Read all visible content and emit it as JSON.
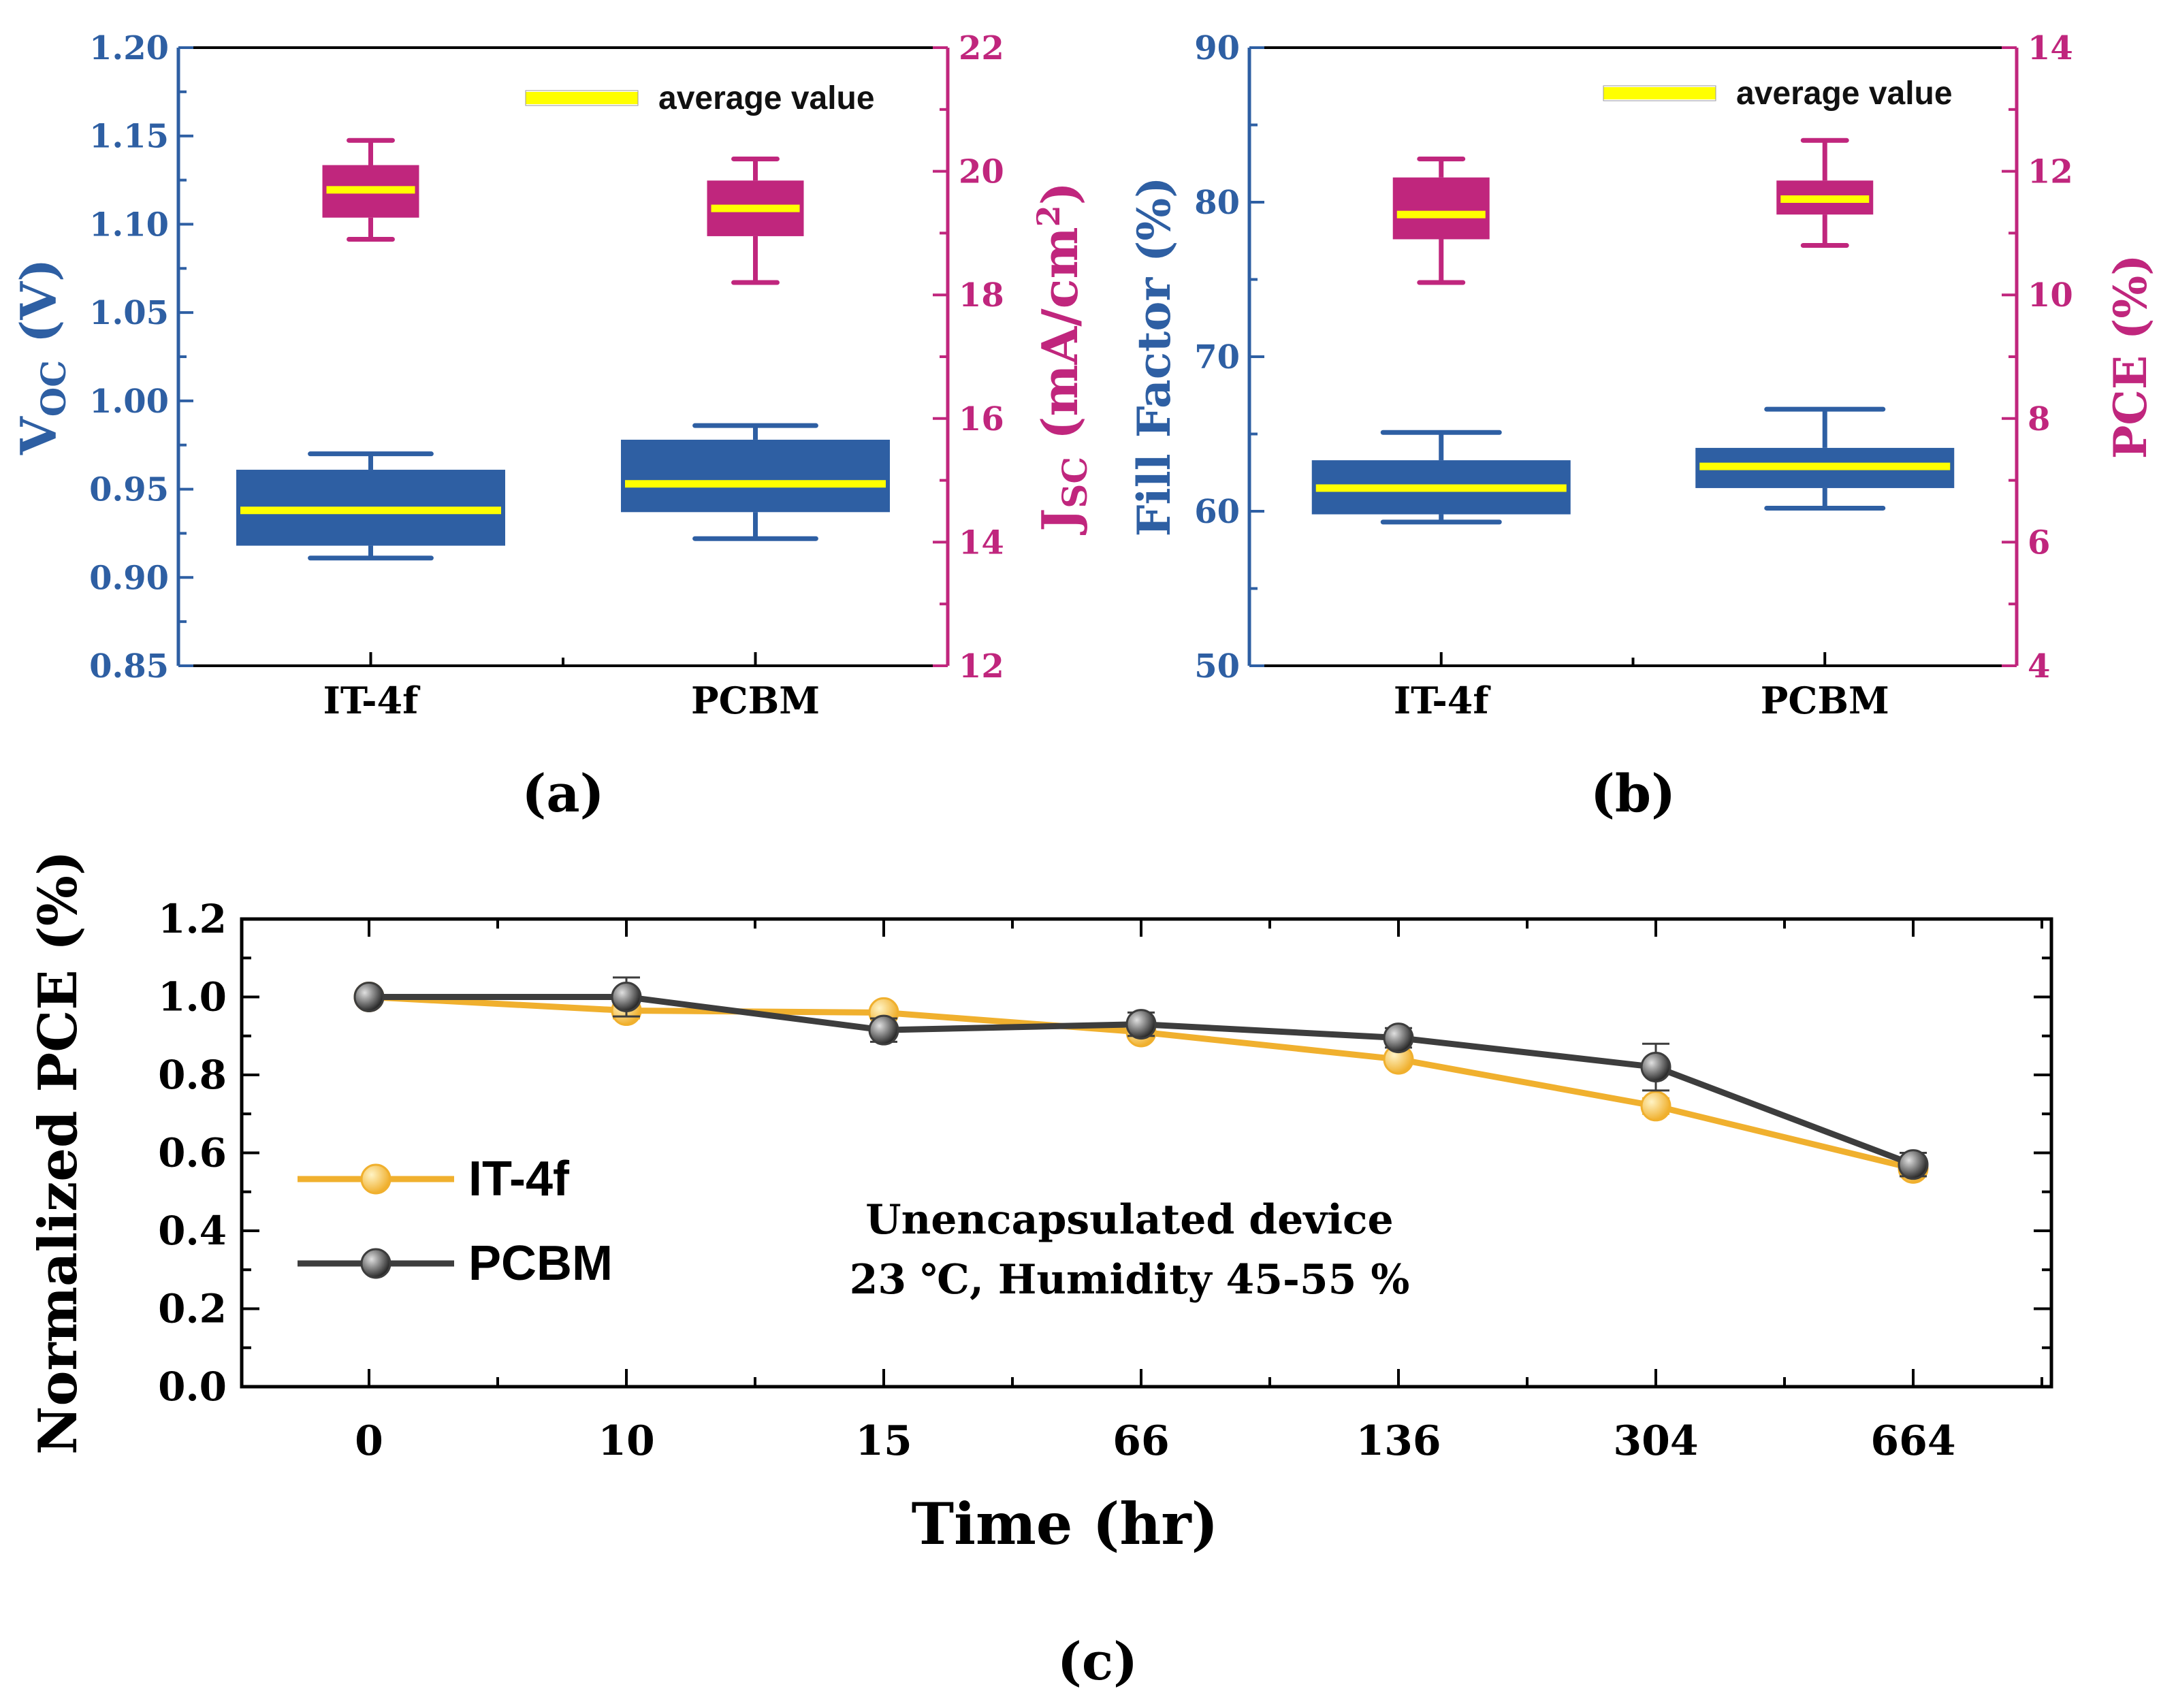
{
  "colors": {
    "blue": "#2e5fa3",
    "magenta": "#c0267d",
    "yellow": "#ffff00",
    "gold": "#f0b02e",
    "dark": "#3d3d3d",
    "axis": "#000000"
  },
  "chart_data": [
    {
      "id": "a",
      "type": "box",
      "panel_label": "(a)",
      "categories": [
        "IT-4f",
        "PCBM"
      ],
      "legend": "average value",
      "left_axis": {
        "label_main": "V",
        "label_sub": "OC",
        "label_unit": " (V)",
        "range": [
          0.85,
          1.2
        ],
        "ticks": [
          0.85,
          0.9,
          0.95,
          1.0,
          1.05,
          1.1,
          1.15,
          1.2
        ],
        "tick_labels": [
          "0.85",
          "0.90",
          "0.95",
          "1.00",
          "1.05",
          "1.10",
          "1.15",
          "1.20"
        ]
      },
      "right_axis": {
        "label_main": "J",
        "label_sub": "SC",
        "label_unit": " (mA/cm",
        "label_sup": "2",
        "label_close": ")",
        "range": [
          12,
          22
        ],
        "ticks": [
          12,
          14,
          16,
          18,
          20,
          22
        ],
        "tick_labels": [
          "12",
          "14",
          "16",
          "18",
          "20",
          "22"
        ]
      },
      "left_series": {
        "name": "Voc",
        "boxes": [
          {
            "min": 0.911,
            "q1": 0.918,
            "mean": 0.938,
            "q3": 0.961,
            "max": 0.97
          },
          {
            "min": 0.922,
            "q1": 0.937,
            "mean": 0.953,
            "q3": 0.978,
            "max": 0.986
          }
        ]
      },
      "right_series": {
        "name": "Jsc",
        "boxes": [
          {
            "min": 18.9,
            "q1": 19.25,
            "mean": 19.7,
            "q3": 20.1,
            "max": 20.5
          },
          {
            "min": 18.2,
            "q1": 18.95,
            "mean": 19.4,
            "q3": 19.85,
            "max": 20.2
          }
        ]
      }
    },
    {
      "id": "b",
      "type": "box",
      "panel_label": "(b)",
      "categories": [
        "IT-4f",
        "PCBM"
      ],
      "legend": "average value",
      "left_axis": {
        "label_main": "Fill Factor (%)",
        "range": [
          50,
          90
        ],
        "ticks": [
          50,
          60,
          70,
          80,
          90
        ],
        "tick_labels": [
          "50",
          "60",
          "70",
          "80",
          "90"
        ]
      },
      "right_axis": {
        "label_main": "PCE (%)",
        "range": [
          4,
          14
        ],
        "ticks": [
          4,
          6,
          8,
          10,
          12,
          14
        ],
        "tick_labels": [
          "4",
          "6",
          "8",
          "10",
          "12",
          "14"
        ]
      },
      "left_series": {
        "name": "Fill Factor",
        "boxes": [
          {
            "min": 59.3,
            "q1": 59.8,
            "mean": 61.5,
            "q3": 63.3,
            "max": 65.1
          },
          {
            "min": 60.2,
            "q1": 61.5,
            "mean": 62.9,
            "q3": 64.1,
            "max": 66.6
          }
        ]
      },
      "right_series": {
        "name": "PCE",
        "boxes": [
          {
            "min": 10.2,
            "q1": 10.9,
            "mean": 11.3,
            "q3": 11.9,
            "max": 12.2
          },
          {
            "min": 10.8,
            "q1": 11.3,
            "mean": 11.55,
            "q3": 11.85,
            "max": 12.5
          }
        ]
      }
    },
    {
      "id": "c",
      "type": "line",
      "panel_label": "(c)",
      "x_labels": [
        "0",
        "10",
        "15",
        "66",
        "136",
        "304",
        "664"
      ],
      "xlabel": "Time (hr)",
      "ylabel": "Normalized PCE (%)",
      "ylim": [
        0,
        1.2
      ],
      "yticks": [
        0,
        0.2,
        0.4,
        0.6,
        0.8,
        1.0,
        1.2
      ],
      "ytick_labels": [
        "0.0",
        "0.2",
        "0.4",
        "0.6",
        "0.8",
        "1.0",
        "1.2"
      ],
      "annotation": [
        "Unencapsulated  device",
        "23 ℃, Humidity  45-55 %"
      ],
      "series": [
        {
          "name": "IT-4f",
          "color": "#f0b02e",
          "values": [
            1.0,
            0.965,
            0.96,
            0.91,
            0.84,
            0.72,
            0.56
          ],
          "errors": [
            0.005,
            0.02,
            0.01,
            0.01,
            0.01,
            0.02,
            0.02
          ]
        },
        {
          "name": "PCBM",
          "color": "#3d3d3d",
          "values": [
            1.0,
            1.0,
            0.915,
            0.93,
            0.895,
            0.82,
            0.57
          ],
          "errors": [
            0.005,
            0.05,
            0.03,
            0.03,
            0.025,
            0.06,
            0.03
          ]
        }
      ]
    }
  ]
}
